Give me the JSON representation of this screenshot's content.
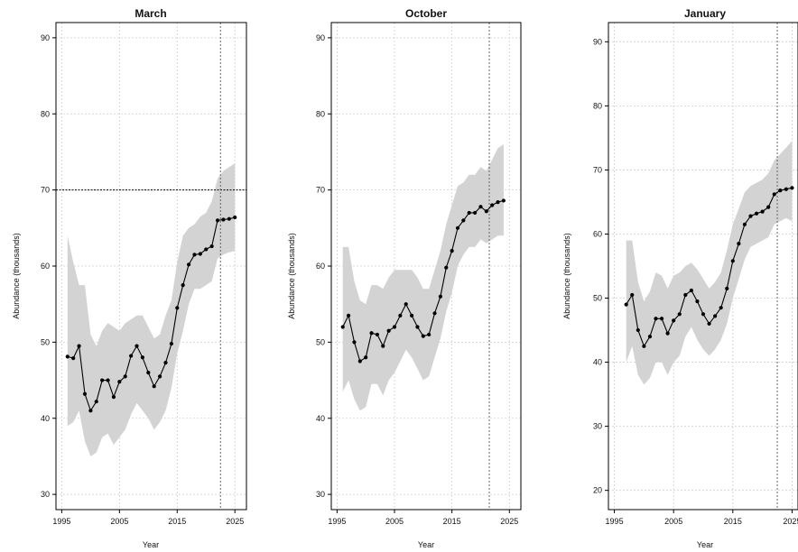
{
  "chart_data": [
    {
      "type": "line",
      "title": "March",
      "xlabel": "Year",
      "ylabel": "Abundance (thousands)",
      "xlim": [
        1994,
        2027
      ],
      "ylim": [
        28,
        92
      ],
      "xticks": [
        "1995",
        "2005",
        "2015",
        "2025"
      ],
      "yticks": [
        "30",
        "40",
        "50",
        "60",
        "70",
        "80",
        "90"
      ],
      "grid": true,
      "reference_hline": 70,
      "reference_vline": 2022.5,
      "band_color": "#d3d3d3",
      "line_color": "#000000",
      "series": [
        {
          "x": [
            1996,
            1997,
            1998,
            1999,
            2000,
            2001,
            2002,
            2003,
            2004,
            2005,
            2006,
            2007,
            2008,
            2009,
            2010,
            2011,
            2012,
            2013,
            2014,
            2015,
            2016,
            2017,
            2018,
            2019,
            2020,
            2021,
            2022,
            2023,
            2024,
            2025
          ],
          "y": [
            48.1,
            47.9,
            49.5,
            43.2,
            41.0,
            42.2,
            45.0,
            45.0,
            42.8,
            44.8,
            45.5,
            48.2,
            49.5,
            48.0,
            46.0,
            44.2,
            45.5,
            47.3,
            49.8,
            54.5,
            57.5,
            60.2,
            61.5,
            61.6,
            62.2,
            62.6,
            66.0,
            66.1,
            66.2,
            66.4
          ],
          "upper": [
            64.0,
            60.5,
            57.5,
            57.5,
            51.0,
            49.5,
            51.5,
            52.5,
            52.0,
            51.5,
            52.5,
            53.0,
            53.5,
            53.5,
            52.0,
            50.5,
            51.0,
            53.5,
            55.5,
            60.5,
            64.0,
            65.0,
            65.5,
            66.5,
            67.0,
            68.5,
            71.5,
            72.5,
            73.0,
            73.5
          ],
          "lower": [
            39.0,
            39.5,
            41.0,
            37.0,
            35.0,
            35.5,
            37.5,
            38.0,
            36.5,
            37.5,
            38.5,
            40.5,
            42.0,
            41.0,
            40.0,
            38.5,
            39.5,
            41.0,
            44.0,
            48.5,
            51.5,
            55.0,
            57.0,
            57.0,
            57.5,
            58.0,
            61.0,
            61.5,
            61.8,
            62.0
          ]
        }
      ]
    },
    {
      "type": "line",
      "title": "October",
      "xlabel": "Year",
      "ylabel": "Abundance (thousands)",
      "xlim": [
        1994,
        2027
      ],
      "ylim": [
        28,
        92
      ],
      "xticks": [
        "1995",
        "2005",
        "2015",
        "2025"
      ],
      "yticks": [
        "30",
        "40",
        "50",
        "60",
        "70",
        "80",
        "90"
      ],
      "grid": true,
      "reference_vline": 2021.5,
      "band_color": "#d3d3d3",
      "line_color": "#000000",
      "series": [
        {
          "x": [
            1996,
            1997,
            1998,
            1999,
            2000,
            2001,
            2002,
            2003,
            2004,
            2005,
            2006,
            2007,
            2008,
            2009,
            2010,
            2011,
            2012,
            2013,
            2014,
            2015,
            2016,
            2017,
            2018,
            2019,
            2020,
            2021,
            2022,
            2023,
            2024
          ],
          "y": [
            52.0,
            53.5,
            50.0,
            47.5,
            48.0,
            51.2,
            51.0,
            49.5,
            51.5,
            52.0,
            53.5,
            55.0,
            53.5,
            52.0,
            50.8,
            51.0,
            53.8,
            56.0,
            59.8,
            62.0,
            65.0,
            66.0,
            67.0,
            67.0,
            67.8,
            67.2,
            68.0,
            68.4,
            68.6
          ],
          "upper": [
            62.5,
            62.5,
            58.0,
            55.5,
            55.0,
            57.5,
            57.5,
            57.0,
            58.5,
            59.5,
            59.5,
            59.5,
            59.5,
            58.5,
            57.0,
            57.0,
            59.5,
            62.0,
            65.5,
            68.0,
            70.5,
            71.0,
            72.0,
            72.0,
            73.0,
            72.5,
            74.0,
            75.5,
            76.0
          ],
          "lower": [
            43.5,
            45.0,
            42.5,
            41.0,
            41.5,
            44.5,
            44.5,
            43.0,
            45.0,
            46.0,
            47.5,
            49.0,
            48.0,
            46.5,
            45.0,
            45.5,
            48.0,
            50.5,
            54.0,
            56.5,
            60.0,
            61.5,
            62.5,
            62.5,
            63.5,
            63.0,
            63.5,
            64.0,
            64.0
          ]
        }
      ]
    },
    {
      "type": "line",
      "title": "January",
      "xlabel": "Year",
      "ylabel": "Abundance (thousands)",
      "xlim": [
        1994,
        2026
      ],
      "ylim": [
        17,
        93
      ],
      "xticks": [
        "1995",
        "2005",
        "2015",
        "2025"
      ],
      "yticks": [
        "20",
        "30",
        "40",
        "50",
        "60",
        "70",
        "80",
        "90"
      ],
      "grid": true,
      "reference_vline": 2022.5,
      "band_color": "#d3d3d3",
      "line_color": "#000000",
      "series": [
        {
          "x": [
            1997,
            1998,
            1999,
            2000,
            2001,
            2002,
            2003,
            2004,
            2005,
            2006,
            2007,
            2008,
            2009,
            2010,
            2011,
            2012,
            2013,
            2014,
            2015,
            2016,
            2017,
            2018,
            2019,
            2020,
            2021,
            2022,
            2023,
            2024,
            2025
          ],
          "y": [
            49.0,
            50.5,
            45.0,
            42.5,
            44.0,
            46.8,
            46.8,
            44.5,
            46.5,
            47.5,
            50.5,
            51.2,
            49.5,
            47.5,
            46.0,
            47.2,
            48.5,
            51.5,
            55.8,
            58.5,
            61.5,
            62.8,
            63.2,
            63.5,
            64.2,
            66.2,
            66.8,
            67.0,
            67.2
          ],
          "upper": [
            59.0,
            59.0,
            52.5,
            49.5,
            51.0,
            54.0,
            53.5,
            51.5,
            53.5,
            54.0,
            55.0,
            55.5,
            54.5,
            53.0,
            51.5,
            52.5,
            54.0,
            57.5,
            61.5,
            64.0,
            66.5,
            67.5,
            68.0,
            68.5,
            69.5,
            71.5,
            72.5,
            73.5,
            74.5
          ],
          "lower": [
            40.0,
            42.5,
            38.0,
            36.5,
            37.5,
            40.0,
            40.0,
            38.0,
            40.0,
            41.0,
            44.0,
            45.5,
            43.5,
            42.0,
            41.0,
            42.0,
            43.5,
            46.0,
            50.0,
            53.0,
            56.0,
            58.0,
            58.5,
            59.0,
            59.5,
            61.5,
            62.0,
            62.5,
            62.0
          ]
        }
      ]
    }
  ]
}
